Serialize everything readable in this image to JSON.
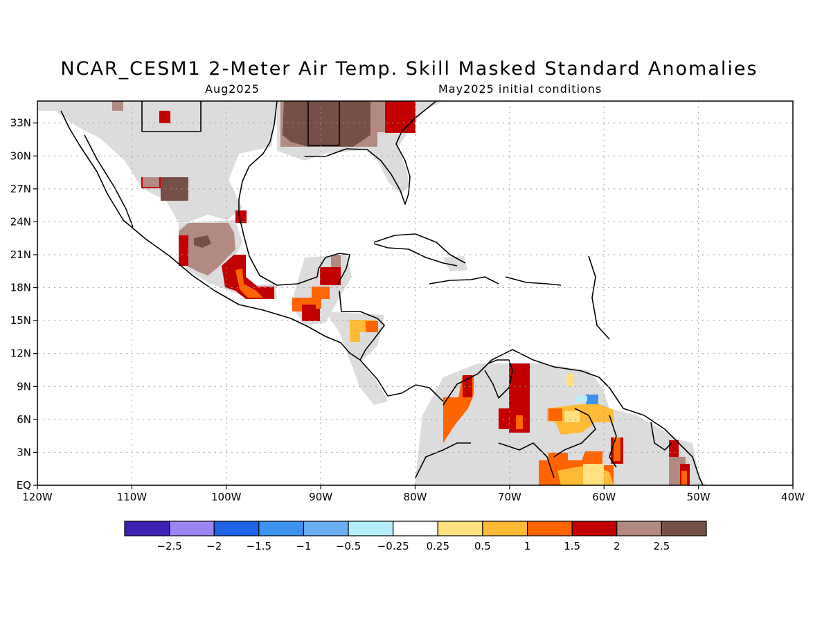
{
  "title": "NCAR_CESM1 2-Meter Air Temp. Skill Masked Standard Anomalies",
  "subtitle_left": "Aug2025",
  "subtitle_right": "May2025 initial conditions",
  "map": {
    "lon_range": [
      -120,
      -40
    ],
    "lat_range": [
      0,
      35
    ],
    "lon_ticks": [
      "120W",
      "110W",
      "100W",
      "90W",
      "80W",
      "70W",
      "60W",
      "50W",
      "40W"
    ],
    "lat_ticks": [
      "EQ",
      "3N",
      "6N",
      "9N",
      "12N",
      "15N",
      "18N",
      "21N",
      "24N",
      "27N",
      "30N",
      "33N"
    ]
  },
  "colorbar": {
    "colors": [
      "#3d22b5",
      "#9b85f2",
      "#1f63e6",
      "#3a93f0",
      "#6aaef2",
      "#b4eefa",
      "#ffffff",
      "#ffe180",
      "#ffbb36",
      "#ff6400",
      "#c30000",
      "#b38a81",
      "#765046"
    ],
    "labels": [
      "-2.5",
      "-2",
      "-1.5",
      "-1",
      "-0.5",
      "-0.25",
      "0.25",
      "0.5",
      "1",
      "1.5",
      "2",
      "2.5"
    ]
  },
  "colors": {
    "masked_gray": "#dcdcdc"
  }
}
